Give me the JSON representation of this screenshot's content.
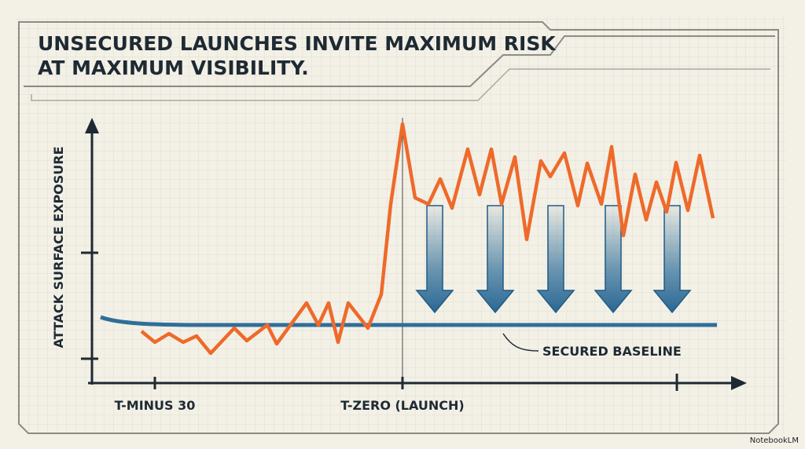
{
  "title": {
    "lines": [
      "UNSECURED LAUNCHES INVITE MAXIMUM RISK",
      "AT MAXIMUM VISIBILITY."
    ]
  },
  "y_axis_label": "ATTACK SURFACE EXPOSURE",
  "x_labels": [
    "T-MINUS 30",
    "T-ZERO (LAUNCH)"
  ],
  "annotation": "SECURED BASELINE",
  "watermark": "NotebookLM"
}
